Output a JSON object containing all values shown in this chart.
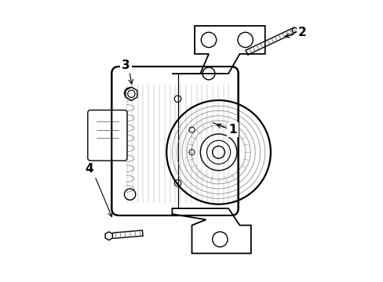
{
  "bg_color": "#ffffff",
  "line_color": "#000000",
  "line_width": 1.0,
  "label_fontsize": 11
}
